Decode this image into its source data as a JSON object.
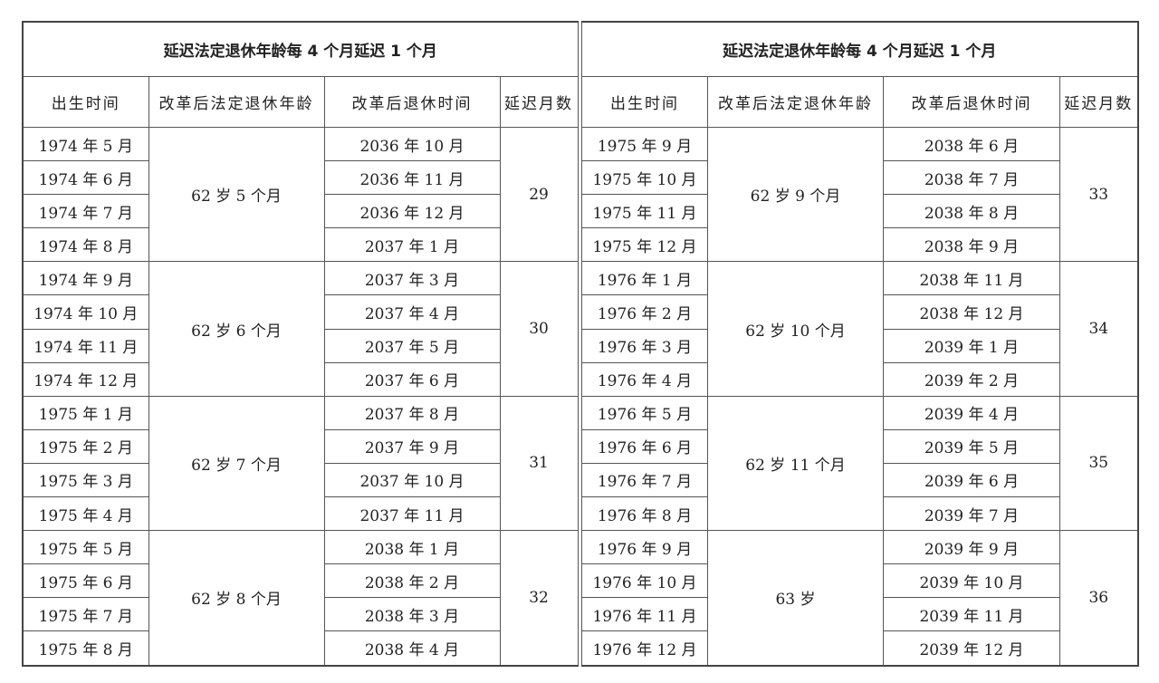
{
  "left": {
    "title": "延迟法定退休年龄每 4 个月延迟 1 个月",
    "headers": [
      "出生时间",
      "改革后法定退休年龄",
      "改革后退休时间",
      "延迟月数"
    ],
    "groups": [
      {
        "age": "62 岁 5 个月",
        "delay": "29",
        "rows": [
          {
            "birth": "1974 年 5 月",
            "retire": "2036 年 10 月"
          },
          {
            "birth": "1974 年 6 月",
            "retire": "2036 年 11 月"
          },
          {
            "birth": "1974 年 7 月",
            "retire": "2036 年 12 月"
          },
          {
            "birth": "1974 年 8 月",
            "retire": "2037 年 1 月"
          }
        ]
      },
      {
        "age": "62 岁 6 个月",
        "delay": "30",
        "rows": [
          {
            "birth": "1974 年 9 月",
            "retire": "2037 年 3 月"
          },
          {
            "birth": "1974 年 10 月",
            "retire": "2037 年 4 月"
          },
          {
            "birth": "1974 年 11 月",
            "retire": "2037 年 5 月"
          },
          {
            "birth": "1974 年 12 月",
            "retire": "2037 年 6 月"
          }
        ]
      },
      {
        "age": "62 岁 7 个月",
        "delay": "31",
        "rows": [
          {
            "birth": "1975 年 1 月",
            "retire": "2037 年 8 月"
          },
          {
            "birth": "1975 年 2 月",
            "retire": "2037 年 9 月"
          },
          {
            "birth": "1975 年 3 月",
            "retire": "2037 年 10 月"
          },
          {
            "birth": "1975 年 4 月",
            "retire": "2037 年 11 月"
          }
        ]
      },
      {
        "age": "62 岁 8 个月",
        "delay": "32",
        "rows": [
          {
            "birth": "1975 年 5 月",
            "retire": "2038 年 1 月"
          },
          {
            "birth": "1975 年 6 月",
            "retire": "2038 年 2 月"
          },
          {
            "birth": "1975 年 7 月",
            "retire": "2038 年 3 月"
          },
          {
            "birth": "1975 年 8 月",
            "retire": "2038 年 4 月"
          }
        ]
      }
    ]
  },
  "right": {
    "title": "延迟法定退休年龄每 4 个月延迟 1 个月",
    "headers": [
      "出生时间",
      "改革后法定退休年龄",
      "改革后退休时间",
      "延迟月数"
    ],
    "groups": [
      {
        "age": "62 岁 9 个月",
        "delay": "33",
        "rows": [
          {
            "birth": "1975 年 9 月",
            "retire": "2038 年 6 月"
          },
          {
            "birth": "1975 年 10 月",
            "retire": "2038 年 7 月"
          },
          {
            "birth": "1975 年 11 月",
            "retire": "2038 年 8 月"
          },
          {
            "birth": "1975 年 12 月",
            "retire": "2038 年 9 月"
          }
        ]
      },
      {
        "age": "62 岁 10 个月",
        "delay": "34",
        "rows": [
          {
            "birth": "1976 年 1 月",
            "retire": "2038 年 11 月"
          },
          {
            "birth": "1976 年 2 月",
            "retire": "2038 年 12 月"
          },
          {
            "birth": "1976 年 3 月",
            "retire": "2039 年 1 月"
          },
          {
            "birth": "1976 年 4 月",
            "retire": "2039 年 2 月"
          }
        ]
      },
      {
        "age": "62 岁 11 个月",
        "delay": "35",
        "rows": [
          {
            "birth": "1976 年 5 月",
            "retire": "2039 年 4 月"
          },
          {
            "birth": "1976 年 6 月",
            "retire": "2039 年 5 月"
          },
          {
            "birth": "1976 年 7 月",
            "retire": "2039 年 6 月"
          },
          {
            "birth": "1976 年 8 月",
            "retire": "2039 年 7 月"
          }
        ]
      },
      {
        "age": "63 岁",
        "delay": "36",
        "rows": [
          {
            "birth": "1976 年 9 月",
            "retire": "2039 年 9 月"
          },
          {
            "birth": "1976 年 10 月",
            "retire": "2039 年 10 月"
          },
          {
            "birth": "1976 年 11 月",
            "retire": "2039 年 11 月"
          },
          {
            "birth": "1976 年 12 月",
            "retire": "2039 年 12 月"
          }
        ]
      }
    ]
  }
}
